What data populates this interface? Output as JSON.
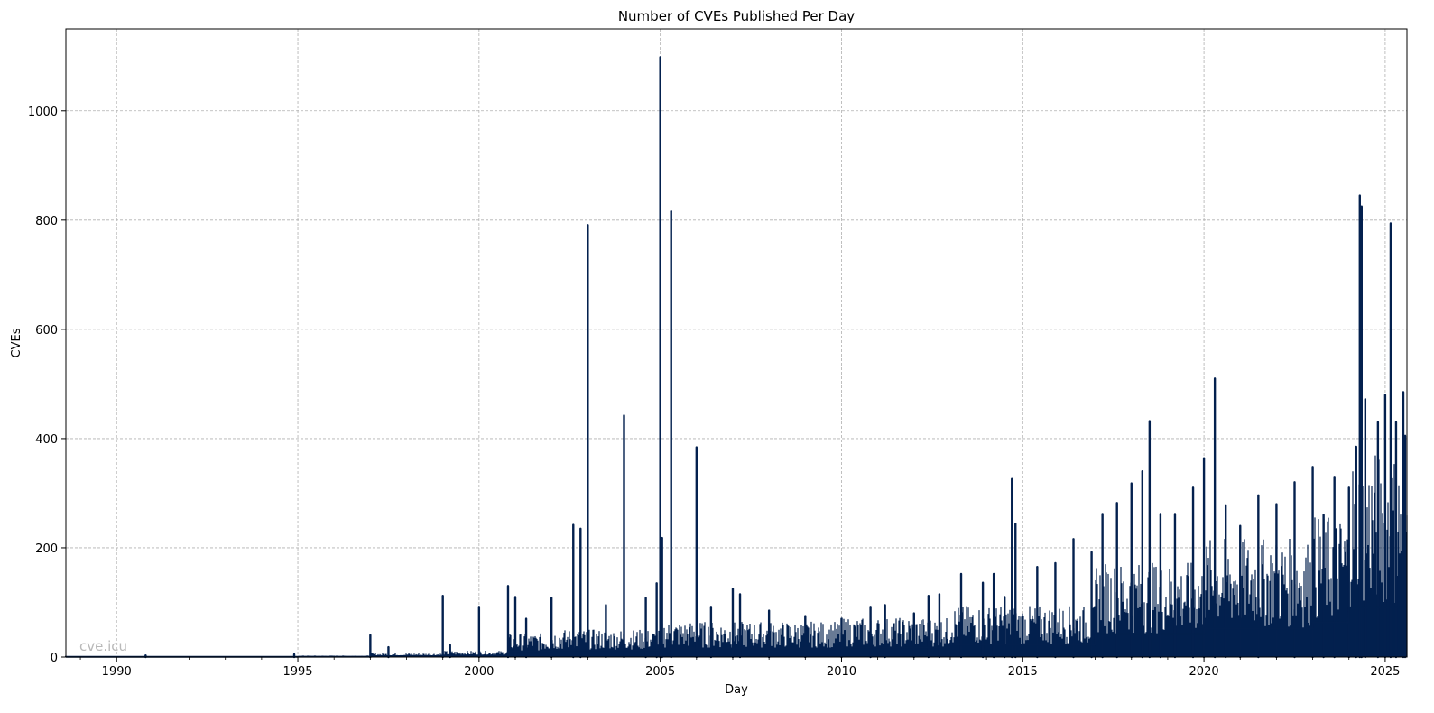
{
  "chart_data": {
    "type": "line",
    "title": "Number of CVEs Published Per Day",
    "xlabel": "Day",
    "ylabel": "CVEs",
    "watermark": "cve.icu",
    "xlim": [
      1988.6,
      2025.6
    ],
    "ylim": [
      0,
      1150
    ],
    "x_ticks": [
      1990,
      1995,
      2000,
      2005,
      2010,
      2015,
      2020,
      2025
    ],
    "x_tick_labels": [
      "1990",
      "1995",
      "2000",
      "2005",
      "2010",
      "2015",
      "2020",
      "2025"
    ],
    "y_ticks": [
      0,
      200,
      400,
      600,
      800,
      1000
    ],
    "y_tick_labels": [
      "0",
      "200",
      "400",
      "600",
      "800",
      "1000"
    ],
    "grid": true,
    "line_color": "#03204e",
    "baseline_segments": [
      {
        "x_start": 1988.6,
        "x_end": 1995.0,
        "level": 1
      },
      {
        "x_start": 1995.0,
        "x_end": 1997.0,
        "level": 2
      },
      {
        "x_start": 1997.0,
        "x_end": 1999.0,
        "level": 5
      },
      {
        "x_start": 1999.0,
        "x_end": 2000.8,
        "level": 8
      },
      {
        "x_start": 2000.8,
        "x_end": 2002.0,
        "level": 30
      },
      {
        "x_start": 2002.0,
        "x_end": 2005.0,
        "level": 35
      },
      {
        "x_start": 2005.0,
        "x_end": 2010.0,
        "level": 45
      },
      {
        "x_start": 2010.0,
        "x_end": 2013.0,
        "level": 50
      },
      {
        "x_start": 2013.0,
        "x_end": 2017.0,
        "level": 65
      },
      {
        "x_start": 2017.0,
        "x_end": 2020.0,
        "level": 120
      },
      {
        "x_start": 2020.0,
        "x_end": 2023.0,
        "level": 150
      },
      {
        "x_start": 2023.0,
        "x_end": 2024.0,
        "level": 180
      },
      {
        "x_start": 2024.0,
        "x_end": 2025.6,
        "level": 260
      }
    ],
    "spikes": [
      {
        "x": 1990.8,
        "y": 3
      },
      {
        "x": 1994.9,
        "y": 5
      },
      {
        "x": 1997.0,
        "y": 40
      },
      {
        "x": 1997.5,
        "y": 18
      },
      {
        "x": 1999.0,
        "y": 112
      },
      {
        "x": 1999.2,
        "y": 22
      },
      {
        "x": 2000.0,
        "y": 92
      },
      {
        "x": 2000.8,
        "y": 130
      },
      {
        "x": 2001.0,
        "y": 110
      },
      {
        "x": 2001.3,
        "y": 70
      },
      {
        "x": 2002.0,
        "y": 108
      },
      {
        "x": 2002.6,
        "y": 242
      },
      {
        "x": 2002.8,
        "y": 235
      },
      {
        "x": 2003.0,
        "y": 791
      },
      {
        "x": 2003.5,
        "y": 95
      },
      {
        "x": 2004.0,
        "y": 442
      },
      {
        "x": 2004.6,
        "y": 108
      },
      {
        "x": 2004.9,
        "y": 135
      },
      {
        "x": 2005.0,
        "y": 1098
      },
      {
        "x": 2005.05,
        "y": 218
      },
      {
        "x": 2005.3,
        "y": 816
      },
      {
        "x": 2006.0,
        "y": 384
      },
      {
        "x": 2006.4,
        "y": 92
      },
      {
        "x": 2007.0,
        "y": 125
      },
      {
        "x": 2007.2,
        "y": 115
      },
      {
        "x": 2008.0,
        "y": 85
      },
      {
        "x": 2009.0,
        "y": 75
      },
      {
        "x": 2010.0,
        "y": 70
      },
      {
        "x": 2010.8,
        "y": 92
      },
      {
        "x": 2011.2,
        "y": 95
      },
      {
        "x": 2012.0,
        "y": 80
      },
      {
        "x": 2012.4,
        "y": 112
      },
      {
        "x": 2012.7,
        "y": 115
      },
      {
        "x": 2013.3,
        "y": 152
      },
      {
        "x": 2013.9,
        "y": 136
      },
      {
        "x": 2014.2,
        "y": 152
      },
      {
        "x": 2014.5,
        "y": 110
      },
      {
        "x": 2014.7,
        "y": 326
      },
      {
        "x": 2014.8,
        "y": 244
      },
      {
        "x": 2015.4,
        "y": 165
      },
      {
        "x": 2015.9,
        "y": 172
      },
      {
        "x": 2016.4,
        "y": 216
      },
      {
        "x": 2016.9,
        "y": 192
      },
      {
        "x": 2017.2,
        "y": 262
      },
      {
        "x": 2017.6,
        "y": 282
      },
      {
        "x": 2018.0,
        "y": 318
      },
      {
        "x": 2018.3,
        "y": 340
      },
      {
        "x": 2018.5,
        "y": 432
      },
      {
        "x": 2018.8,
        "y": 262
      },
      {
        "x": 2019.2,
        "y": 262
      },
      {
        "x": 2019.7,
        "y": 310
      },
      {
        "x": 2020.0,
        "y": 364
      },
      {
        "x": 2020.3,
        "y": 510
      },
      {
        "x": 2020.6,
        "y": 278
      },
      {
        "x": 2021.0,
        "y": 240
      },
      {
        "x": 2021.5,
        "y": 296
      },
      {
        "x": 2022.0,
        "y": 280
      },
      {
        "x": 2022.5,
        "y": 320
      },
      {
        "x": 2023.0,
        "y": 348
      },
      {
        "x": 2023.3,
        "y": 260
      },
      {
        "x": 2023.6,
        "y": 330
      },
      {
        "x": 2024.0,
        "y": 310
      },
      {
        "x": 2024.2,
        "y": 385
      },
      {
        "x": 2024.3,
        "y": 845
      },
      {
        "x": 2024.35,
        "y": 825
      },
      {
        "x": 2024.45,
        "y": 472
      },
      {
        "x": 2024.8,
        "y": 430
      },
      {
        "x": 2025.0,
        "y": 480
      },
      {
        "x": 2025.15,
        "y": 794
      },
      {
        "x": 2025.3,
        "y": 430
      },
      {
        "x": 2025.5,
        "y": 485
      },
      {
        "x": 2025.55,
        "y": 405
      }
    ]
  }
}
